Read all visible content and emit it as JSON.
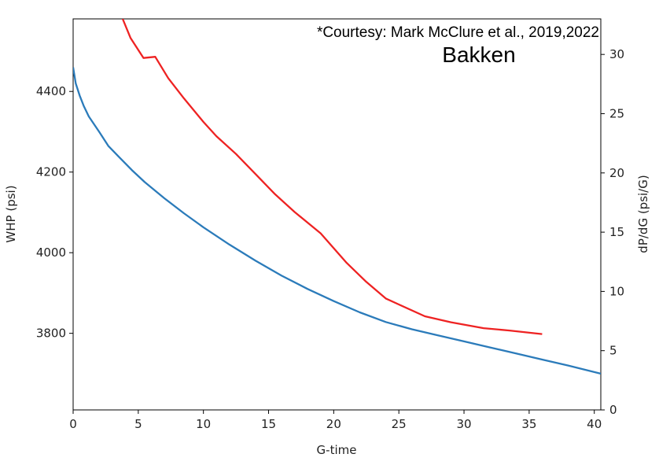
{
  "annotations": {
    "courtesy": "*Courtesy: Mark McClure et al., 2019,2022",
    "title": "Bakken"
  },
  "chart_data": {
    "type": "line",
    "xlabel": "G-time",
    "ylabel_left": "WHP (psi)",
    "ylabel_right": "dP/dG (psi/G)",
    "xlim": [
      0,
      40.5
    ],
    "ylim_left": [
      3610,
      4580
    ],
    "ylim_right": [
      0,
      33
    ],
    "x_ticks": [
      0,
      5,
      10,
      15,
      20,
      25,
      30,
      35,
      40
    ],
    "y_left_ticks": [
      3800,
      4000,
      4200,
      4400
    ],
    "y_right_ticks": [
      0,
      5,
      10,
      15,
      20,
      25,
      30
    ],
    "grid": false,
    "series": [
      {
        "axis": "left",
        "color": "#2b7bba",
        "points": [
          [
            0,
            4460
          ],
          [
            0.2,
            4420
          ],
          [
            0.5,
            4390
          ],
          [
            0.8,
            4365
          ],
          [
            1.2,
            4338
          ],
          [
            2,
            4300
          ],
          [
            2.7,
            4265
          ],
          [
            3.5,
            4238
          ],
          [
            4.5,
            4205
          ],
          [
            5.5,
            4175
          ],
          [
            7,
            4135
          ],
          [
            8.5,
            4098
          ],
          [
            10,
            4063
          ],
          [
            12,
            4020
          ],
          [
            14,
            3980
          ],
          [
            16,
            3943
          ],
          [
            18,
            3910
          ],
          [
            20,
            3880
          ],
          [
            22,
            3852
          ],
          [
            24,
            3828
          ],
          [
            26,
            3810
          ],
          [
            28,
            3795
          ],
          [
            30,
            3780
          ],
          [
            32,
            3765
          ],
          [
            34,
            3750
          ],
          [
            36,
            3735
          ],
          [
            38,
            3720
          ],
          [
            40.5,
            3700
          ]
        ]
      },
      {
        "axis": "right",
        "color": "#ee2222",
        "points": [
          [
            3.8,
            33
          ],
          [
            4.4,
            31.4
          ],
          [
            5.4,
            29.7
          ],
          [
            6.3,
            29.8
          ],
          [
            7.3,
            28
          ],
          [
            8.5,
            26.3
          ],
          [
            10,
            24.3
          ],
          [
            11,
            23.1
          ],
          [
            12.5,
            21.6
          ],
          [
            14,
            19.9
          ],
          [
            15.5,
            18.2
          ],
          [
            17,
            16.7
          ],
          [
            19,
            14.9
          ],
          [
            21,
            12.4
          ],
          [
            22.5,
            10.8
          ],
          [
            24,
            9.4
          ],
          [
            25,
            8.9
          ],
          [
            27,
            7.9
          ],
          [
            29,
            7.4
          ],
          [
            31.5,
            6.9
          ],
          [
            33.5,
            6.7
          ],
          [
            36,
            6.4
          ]
        ]
      }
    ]
  }
}
